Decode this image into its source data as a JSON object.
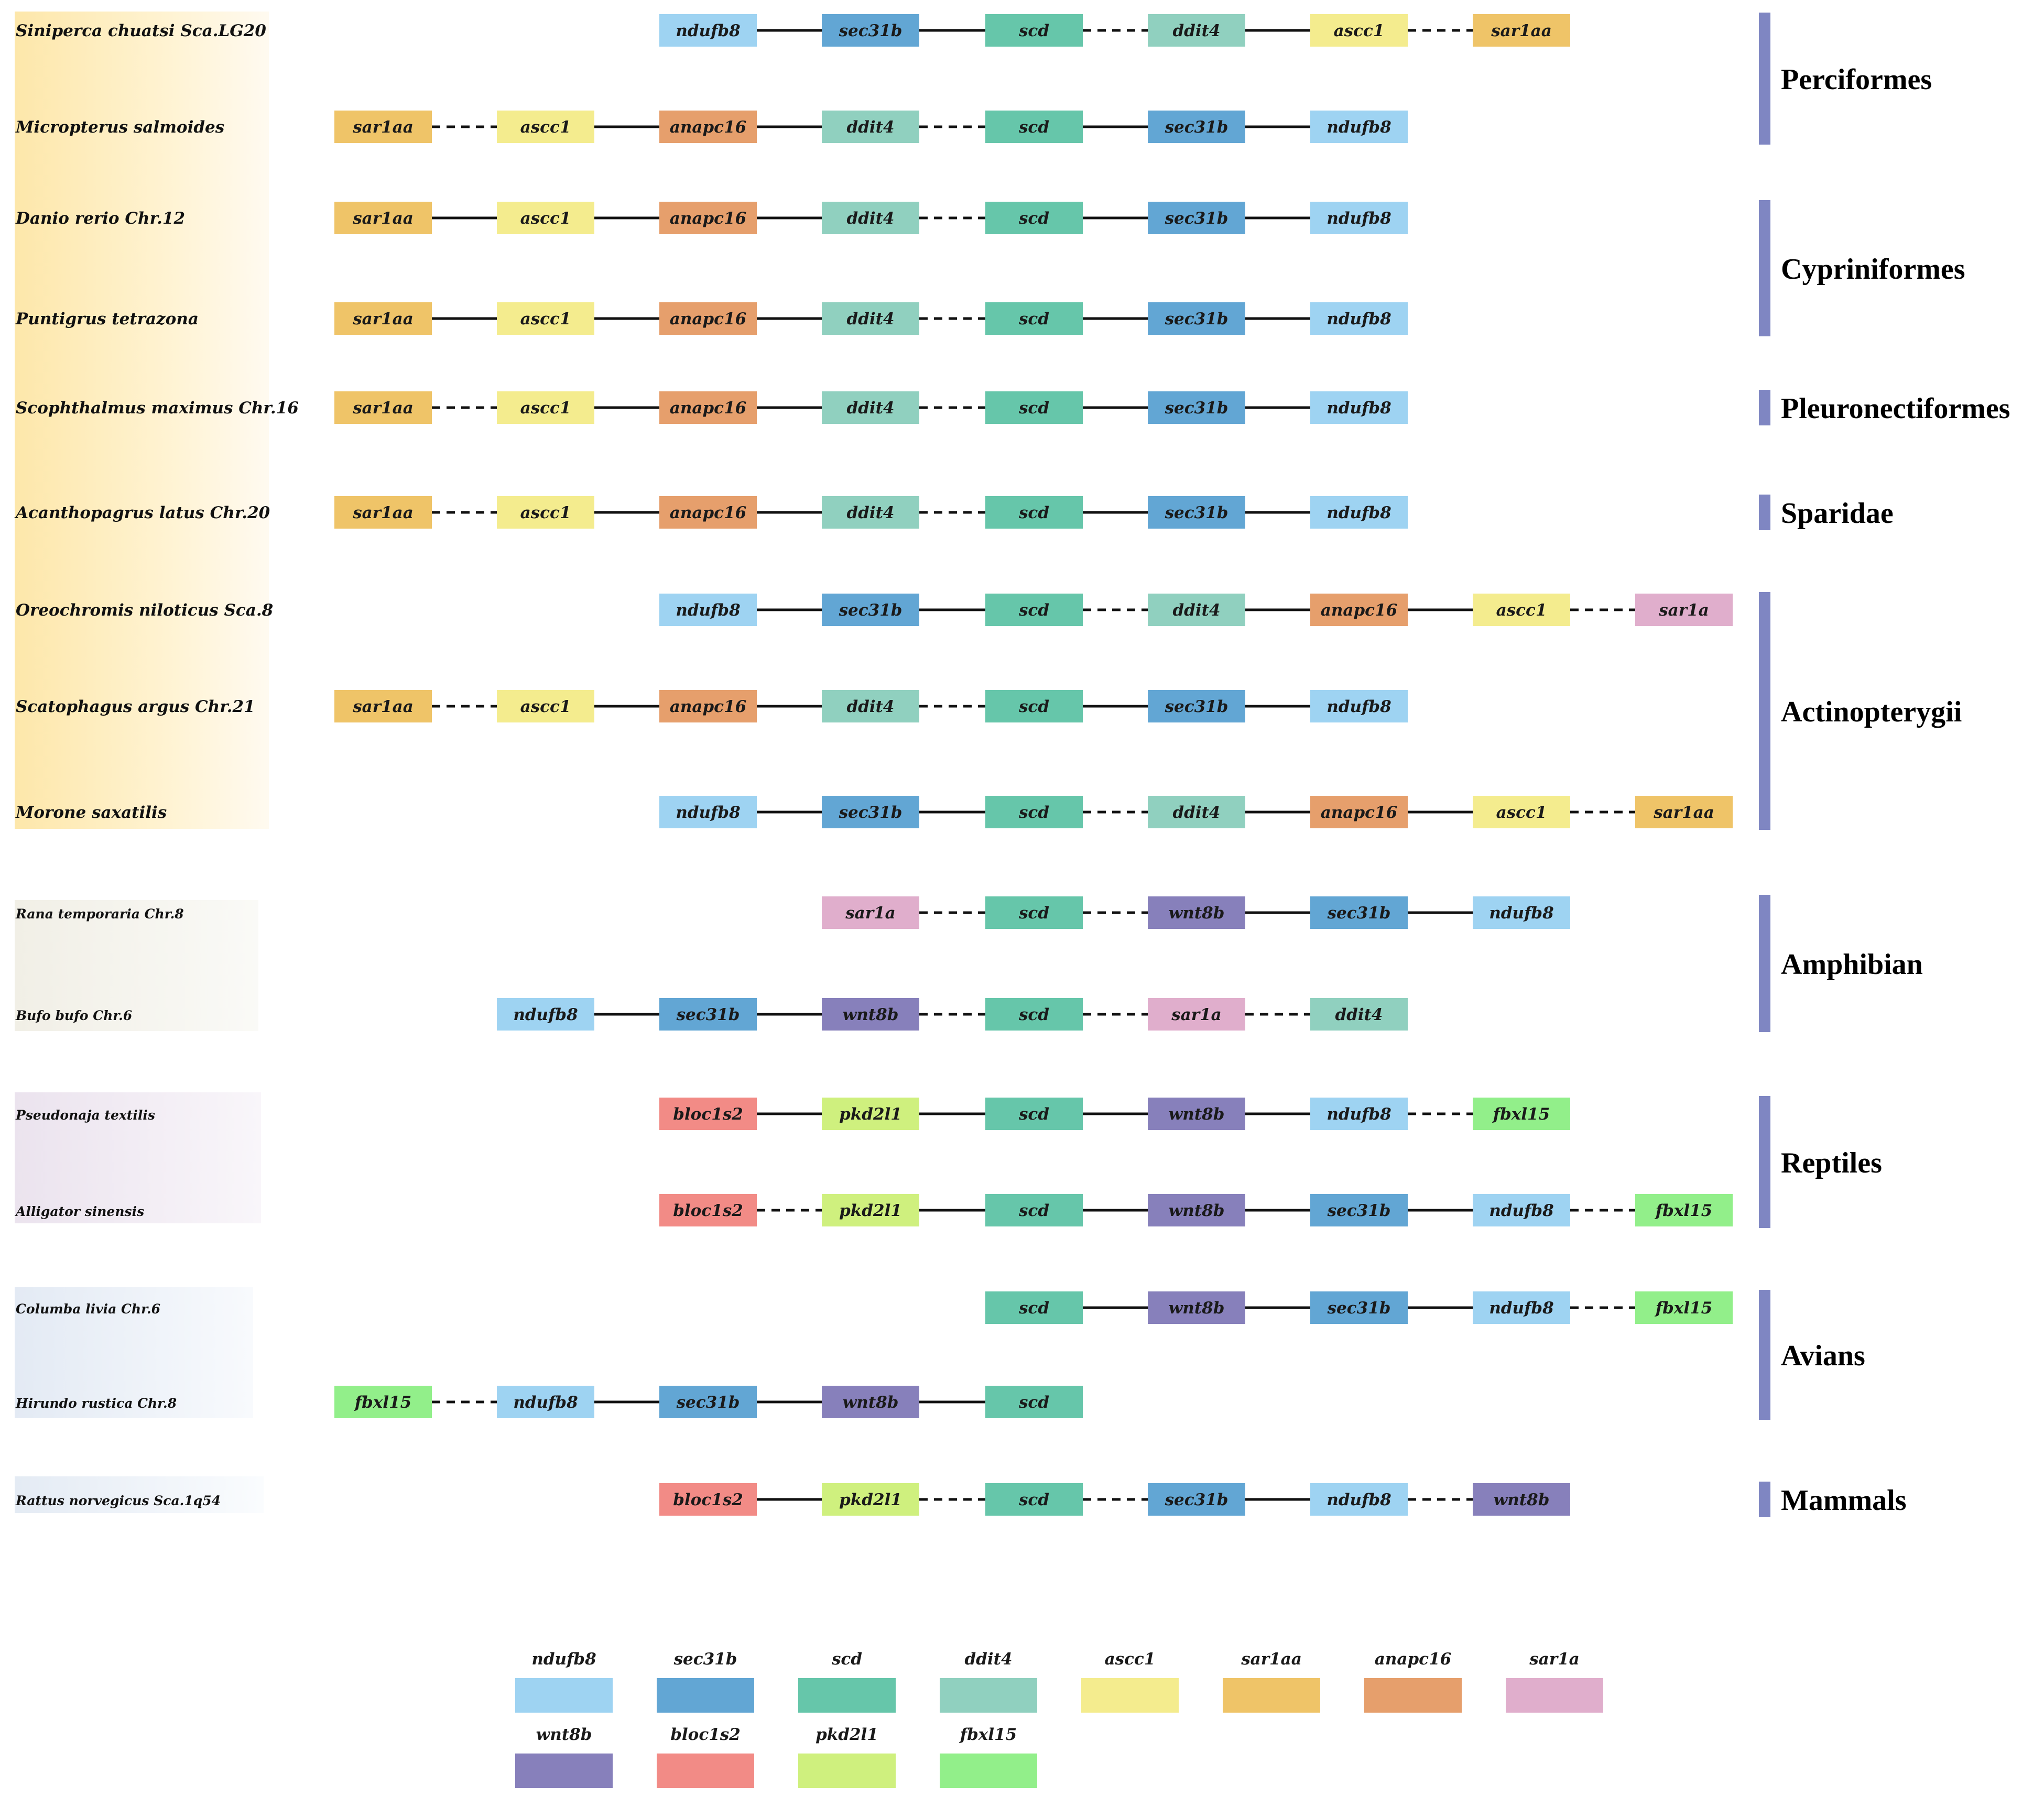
{
  "gene_colors": {
    "ndufb8": "#9ed3f2",
    "sec31b": "#62a6d4",
    "scd": "#66c6aa",
    "ddit4": "#90d0bf",
    "ascc1": "#f4ec8e",
    "sar1aa": "#efc468",
    "anapc16": "#e69f6c",
    "sar1a": "#e0aecc",
    "wnt8b": "#8780bb",
    "bloc1s2": "#f28b86",
    "pkd2l1": "#cff07e",
    "fbxl15": "#92ef8a"
  },
  "rows": [
    {
      "species": "Siniperca chuatsi Sca.LG20",
      "startSlot": 2,
      "genes": [
        "ndufb8",
        "sec31b",
        "scd",
        "ddit4",
        "ascc1",
        "sar1aa"
      ],
      "links": [
        "solid",
        "solid",
        "dashed",
        "solid",
        "dashed"
      ]
    },
    {
      "species": "Micropterus salmoides",
      "startSlot": 0,
      "genes": [
        "sar1aa",
        "ascc1",
        "anapc16",
        "ddit4",
        "scd",
        "sec31b",
        "ndufb8"
      ],
      "links": [
        "dashed",
        "solid",
        "solid",
        "dashed",
        "solid",
        "solid"
      ]
    },
    {
      "species": "Danio rerio Chr.12",
      "startSlot": 0,
      "genes": [
        "sar1aa",
        "ascc1",
        "anapc16",
        "ddit4",
        "scd",
        "sec31b",
        "ndufb8"
      ],
      "links": [
        "solid",
        "solid",
        "solid",
        "dashed",
        "solid",
        "solid"
      ]
    },
    {
      "species": "Puntigrus tetrazona",
      "startSlot": 0,
      "genes": [
        "sar1aa",
        "ascc1",
        "anapc16",
        "ddit4",
        "scd",
        "sec31b",
        "ndufb8"
      ],
      "links": [
        "solid",
        "solid",
        "solid",
        "dashed",
        "solid",
        "solid"
      ]
    },
    {
      "species": "Scophthalmus maximus Chr.16",
      "startSlot": 0,
      "genes": [
        "sar1aa",
        "ascc1",
        "anapc16",
        "ddit4",
        "scd",
        "sec31b",
        "ndufb8"
      ],
      "links": [
        "dashed",
        "solid",
        "solid",
        "dashed",
        "solid",
        "solid"
      ]
    },
    {
      "species": "Acanthopagrus latus Chr.20",
      "startSlot": 0,
      "genes": [
        "sar1aa",
        "ascc1",
        "anapc16",
        "ddit4",
        "scd",
        "sec31b",
        "ndufb8"
      ],
      "links": [
        "dashed",
        "solid",
        "solid",
        "dashed",
        "solid",
        "solid"
      ]
    },
    {
      "species": "Oreochromis niloticus Sca.8",
      "startSlot": 2,
      "genes": [
        "ndufb8",
        "sec31b",
        "scd",
        "ddit4",
        "anapc16",
        "ascc1",
        "sar1a"
      ],
      "links": [
        "solid",
        "solid",
        "dashed",
        "solid",
        "solid",
        "dashed"
      ]
    },
    {
      "species": "Scatophagus argus Chr.21",
      "startSlot": 0,
      "genes": [
        "sar1aa",
        "ascc1",
        "anapc16",
        "ddit4",
        "scd",
        "sec31b",
        "ndufb8"
      ],
      "links": [
        "dashed",
        "solid",
        "solid",
        "dashed",
        "solid",
        "solid"
      ]
    },
    {
      "species": "Morone saxatilis",
      "startSlot": 2,
      "genes": [
        "ndufb8",
        "sec31b",
        "scd",
        "ddit4",
        "anapc16",
        "ascc1",
        "sar1aa"
      ],
      "links": [
        "solid",
        "solid",
        "dashed",
        "solid",
        "solid",
        "dashed"
      ]
    },
    {
      "species": "Rana temporaria Chr.8",
      "startSlot": 3,
      "genes": [
        "sar1a",
        "scd",
        "wnt8b",
        "sec31b",
        "ndufb8"
      ],
      "links": [
        "dashed",
        "dashed",
        "solid",
        "solid"
      ]
    },
    {
      "species": "Bufo bufo Chr.6",
      "startSlot": 1,
      "genes": [
        "ndufb8",
        "sec31b",
        "wnt8b",
        "scd",
        "sar1a",
        "ddit4"
      ],
      "links": [
        "solid",
        "solid",
        "dashed",
        "dashed",
        "dashed"
      ]
    },
    {
      "species": "Pseudonaja textilis",
      "startSlot": 2,
      "genes": [
        "bloc1s2",
        "pkd2l1",
        "scd",
        "wnt8b",
        "ndufb8",
        "fbxl15"
      ],
      "links": [
        "solid",
        "solid",
        "solid",
        "solid",
        "dashed"
      ]
    },
    {
      "species": "Alligator sinensis",
      "startSlot": 2,
      "genes": [
        "bloc1s2",
        "pkd2l1",
        "scd",
        "wnt8b",
        "sec31b",
        "ndufb8",
        "fbxl15"
      ],
      "links": [
        "dashed",
        "solid",
        "solid",
        "solid",
        "solid",
        "dashed"
      ]
    },
    {
      "species": "Columba livia Chr.6",
      "startSlot": 4,
      "genes": [
        "scd",
        "wnt8b",
        "sec31b",
        "ndufb8",
        "fbxl15"
      ],
      "links": [
        "solid",
        "solid",
        "solid",
        "dashed"
      ]
    },
    {
      "species": "Hirundo rustica Chr.8",
      "startSlot": 0,
      "genes": [
        "fbxl15",
        "ndufb8",
        "sec31b",
        "wnt8b",
        "scd"
      ],
      "links": [
        "dashed",
        "solid",
        "solid",
        "solid"
      ]
    },
    {
      "species": "Rattus norvegicus Sca.1q54",
      "startSlot": 2,
      "genes": [
        "bloc1s2",
        "pkd2l1",
        "scd",
        "sec31b",
        "ndufb8",
        "wnt8b"
      ],
      "links": [
        "solid",
        "dashed",
        "dashed",
        "solid",
        "dashed"
      ]
    }
  ],
  "groups": [
    {
      "label": "Perciformes",
      "firstRow": 0,
      "lastRow": 1
    },
    {
      "label": "Cypriniformes",
      "firstRow": 2,
      "lastRow": 3
    },
    {
      "label": "Pleuronectiformes",
      "firstRow": 4,
      "lastRow": 4
    },
    {
      "label": "Sparidae",
      "firstRow": 5,
      "lastRow": 5
    },
    {
      "label": "Actinopterygii",
      "firstRow": 6,
      "lastRow": 8
    },
    {
      "label": "Amphibian",
      "firstRow": 9,
      "lastRow": 10
    },
    {
      "label": "Reptiles",
      "firstRow": 11,
      "lastRow": 12
    },
    {
      "label": "Avians",
      "firstRow": 13,
      "lastRow": 14
    },
    {
      "label": "Mammals",
      "firstRow": 15,
      "lastRow": 15
    }
  ],
  "legend": [
    [
      "ndufb8",
      "sec31b",
      "scd",
      "ddit4",
      "ascc1",
      "sar1aa",
      "anapc16",
      "sar1a"
    ],
    [
      "wnt8b",
      "bloc1s2",
      "pkd2l1",
      "fbxl15"
    ]
  ]
}
